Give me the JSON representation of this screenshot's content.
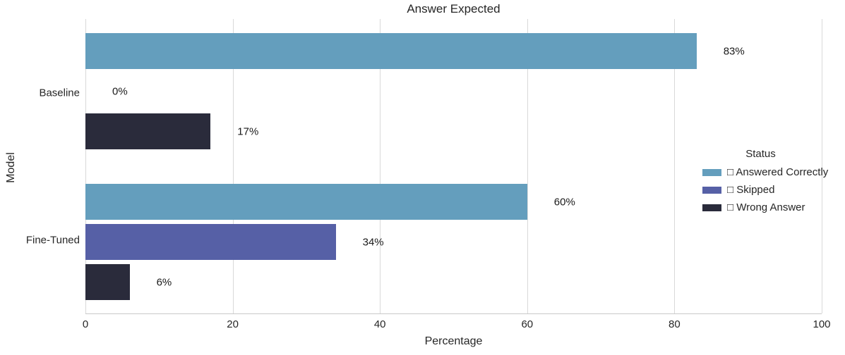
{
  "chart_data": {
    "type": "bar",
    "orientation": "horizontal",
    "title": "Answer Expected",
    "xlabel": "Percentage",
    "ylabel": "Model",
    "xlim": [
      0,
      100
    ],
    "xticks": [
      0,
      20,
      40,
      60,
      80,
      100
    ],
    "grid": "vertical-gridlines-only",
    "categories": [
      "Baseline",
      "Fine-Tuned"
    ],
    "series": [
      {
        "name": "Answered Correctly",
        "color": "#649EBD",
        "values": [
          83,
          60
        ],
        "labels": [
          "83%",
          "60%"
        ]
      },
      {
        "name": "Skipped",
        "color": "#5660A6",
        "values": [
          0,
          34
        ],
        "labels": [
          "0%",
          "34%"
        ]
      },
      {
        "name": "Wrong Answer",
        "color": "#2A2B3B",
        "values": [
          17,
          6
        ],
        "labels": [
          "17%",
          "6%"
        ]
      }
    ],
    "legend": {
      "title": "Status",
      "position": "center-right",
      "items": [
        {
          "label": "□ Answered Correctly",
          "color": "#649EBD"
        },
        {
          "label": "□ Skipped",
          "color": "#5660A6"
        },
        {
          "label": "□ Wrong Answer",
          "color": "#2A2B3B"
        }
      ]
    }
  }
}
